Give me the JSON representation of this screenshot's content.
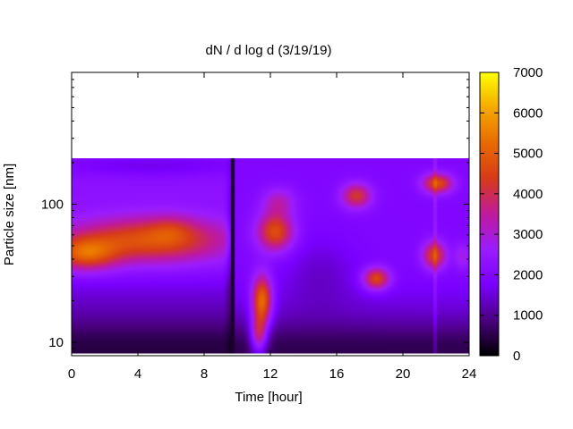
{
  "chart_data": {
    "type": "heatmap",
    "title": "dN / d log d (3/19/19)",
    "xlabel": "Time [hour]",
    "ylabel": "Particle size [nm]",
    "xlim": [
      0,
      24
    ],
    "ylim": [
      8,
      900
    ],
    "yscale": "log",
    "data_ymin": 8.3,
    "data_ymax": 215,
    "x_ticks": [
      0,
      4,
      8,
      12,
      16,
      20,
      24
    ],
    "x_tick_labels": [
      "0",
      "4",
      "8",
      "12",
      "16",
      "20",
      "24"
    ],
    "y_ticks": [
      10,
      100
    ],
    "y_tick_labels": [
      "10",
      "100"
    ],
    "colorbar": {
      "min": 0,
      "max": 7000,
      "ticks": [
        0,
        1000,
        2000,
        3000,
        4000,
        5000,
        6000,
        7000
      ],
      "tick_labels": [
        "0",
        "1000",
        "2000",
        "3000",
        "4000",
        "5000",
        "6000",
        "7000"
      ],
      "palette": [
        "#000000",
        "#4b0082",
        "#7a00ff",
        "#9b1cff",
        "#c01a9c",
        "#d73a1a",
        "#e86a00",
        "#f4a800",
        "#ffff00"
      ]
    },
    "grid": false,
    "features": [
      {
        "x": 0.8,
        "y": 45,
        "value": 6000
      },
      {
        "x": 3.5,
        "y": 55,
        "value": 4200
      },
      {
        "x": 6.0,
        "y": 65,
        "value": 4200
      },
      {
        "x": 8.5,
        "y": 55,
        "value": 4000
      },
      {
        "x": 11.5,
        "y": 20,
        "value": 5800
      },
      {
        "x": 12.3,
        "y": 60,
        "value": 4800
      },
      {
        "x": 17.2,
        "y": 110,
        "value": 4000
      },
      {
        "x": 18.4,
        "y": 29,
        "value": 4500
      },
      {
        "x": 21.8,
        "y": 42,
        "value": 4300
      },
      {
        "x": 22.1,
        "y": 140,
        "value": 4500
      }
    ]
  }
}
